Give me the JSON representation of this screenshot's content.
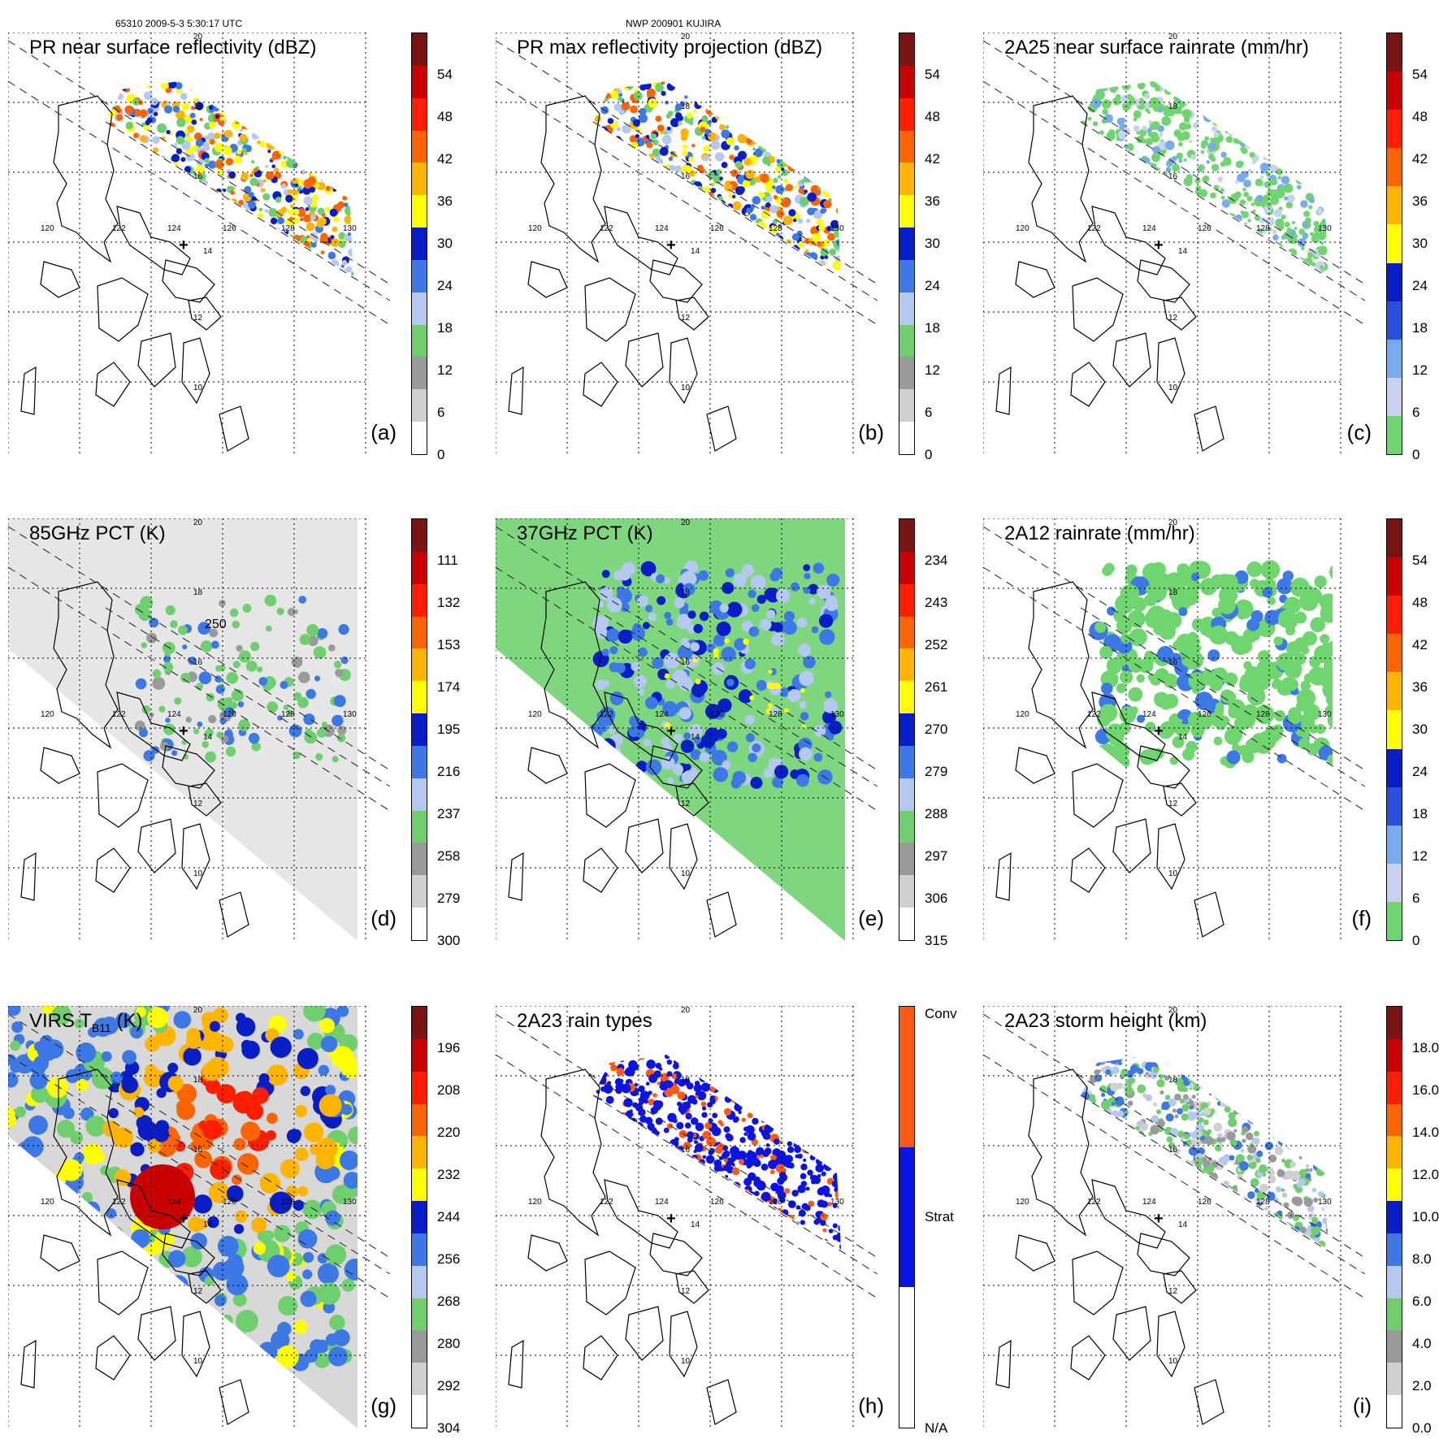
{
  "header": {
    "left": "65310 2009-5-3 5:30:17 UTC",
    "center": "NWP 200901 KUJIRA"
  },
  "map_labels": {
    "lat_top": "20",
    "lat_18": "18",
    "lat_16": "16",
    "lat_14": "14",
    "lat_12": "12",
    "lat_10": "10",
    "lon_120": "120",
    "lon_122": "122",
    "lon_124": "124",
    "lon_126": "126",
    "lon_128": "128",
    "lon_130": "130"
  },
  "panels": [
    {
      "id": "a",
      "label": "(a)",
      "title": "PR near surface reflectivity (dBZ)",
      "kind": "swath",
      "fill": "pr",
      "colorbar": {
        "colors": [
          "#ffffff",
          "#d0d0d0",
          "#9a9a9a",
          "#6fcf6f",
          "#b4c8f0",
          "#3c78e6",
          "#0a1ec8",
          "#ffff00",
          "#ffb400",
          "#ff6400",
          "#ff1e00",
          "#c80000",
          "#781414"
        ],
        "ticks": [
          "54",
          "48",
          "42",
          "36",
          "30",
          "24",
          "18",
          "12",
          "6",
          "0"
        ]
      }
    },
    {
      "id": "b",
      "label": "(b)",
      "title": "PR max reflectivity projection (dBZ)",
      "kind": "swath",
      "fill": "prmax",
      "colorbar": {
        "colors": [
          "#ffffff",
          "#d0d0d0",
          "#9a9a9a",
          "#6fcf6f",
          "#b4c8f0",
          "#3c78e6",
          "#0a1ec8",
          "#ffff00",
          "#ffb400",
          "#ff6400",
          "#ff1e00",
          "#c80000",
          "#781414"
        ],
        "ticks": [
          "54",
          "48",
          "42",
          "36",
          "30",
          "24",
          "18",
          "12",
          "6",
          "0"
        ]
      }
    },
    {
      "id": "c",
      "label": "(c)",
      "title": "2A25 near surface rainrate (mm/hr)",
      "kind": "swath",
      "fill": "rain",
      "colorbar": {
        "colors": [
          "#6fd66f",
          "#c8d2f0",
          "#78aaf0",
          "#2850dc",
          "#0a1ec8",
          "#ffff00",
          "#ffb400",
          "#ff6400",
          "#ff1e00",
          "#c80000",
          "#781414"
        ],
        "ticks": [
          "54",
          "48",
          "42",
          "36",
          "30",
          "24",
          "18",
          "12",
          "6",
          "0"
        ]
      }
    },
    {
      "id": "d",
      "label": "(d)",
      "title": "85GHz PCT (K)",
      "kind": "wide",
      "fill": "pct85",
      "contour_label": "250",
      "colorbar": {
        "colors": [
          "#ffffff",
          "#d0d0d0",
          "#9a9a9a",
          "#6fcf6f",
          "#b4c8f0",
          "#3c78e6",
          "#0a1ec8",
          "#ffff00",
          "#ffb400",
          "#ff6400",
          "#ff1e00",
          "#c80000",
          "#781414"
        ],
        "ticks": [
          "111",
          "132",
          "153",
          "174",
          "195",
          "216",
          "237",
          "258",
          "279",
          "300"
        ]
      }
    },
    {
      "id": "e",
      "label": "(e)",
      "title": "37GHz PCT (K)",
      "kind": "wide",
      "fill": "pct37",
      "colorbar": {
        "colors": [
          "#ffffff",
          "#d0d0d0",
          "#9a9a9a",
          "#6fcf6f",
          "#b4c8f0",
          "#3c78e6",
          "#0a1ec8",
          "#ffff00",
          "#ffb400",
          "#ff6400",
          "#ff1e00",
          "#c80000",
          "#781414"
        ],
        "ticks": [
          "234",
          "243",
          "252",
          "261",
          "270",
          "279",
          "288",
          "297",
          "306",
          "315"
        ]
      }
    },
    {
      "id": "f",
      "label": "(f)",
      "title": "2A12 rainrate (mm/hr)",
      "kind": "wide",
      "fill": "rain12",
      "colorbar": {
        "colors": [
          "#6fd66f",
          "#c8d2f0",
          "#78aaf0",
          "#2850dc",
          "#0a1ec8",
          "#ffff00",
          "#ffb400",
          "#ff6400",
          "#ff1e00",
          "#c80000",
          "#781414"
        ],
        "ticks": [
          "54",
          "48",
          "42",
          "36",
          "30",
          "24",
          "18",
          "12",
          "6",
          "0"
        ]
      }
    },
    {
      "id": "g",
      "label": "(g)",
      "title": "VIRS T",
      "title_sub": "B11",
      "title_tail": " (K)",
      "kind": "wide",
      "fill": "virs",
      "colorbar": {
        "colors": [
          "#ffffff",
          "#d0d0d0",
          "#9a9a9a",
          "#6fcf6f",
          "#b4c8f0",
          "#3c78e6",
          "#0a1ec8",
          "#ffff00",
          "#ffb400",
          "#ff6400",
          "#ff1e00",
          "#c80000",
          "#781414"
        ],
        "ticks": [
          "196",
          "208",
          "220",
          "232",
          "244",
          "256",
          "268",
          "280",
          "292",
          "304"
        ]
      }
    },
    {
      "id": "h",
      "label": "(h)",
      "title": "2A23 rain types",
      "kind": "swath",
      "fill": "types",
      "colorbar": {
        "colors": [
          "#ffffff",
          "#0a14e6",
          "#ff5a14"
        ],
        "ticks": [
          "Conv",
          "Strat",
          "N/A"
        ]
      }
    },
    {
      "id": "i",
      "label": "(i)",
      "title": "2A23 storm height (km)",
      "kind": "swath",
      "fill": "height",
      "colorbar": {
        "colors": [
          "#ffffff",
          "#d0d0d0",
          "#9a9a9a",
          "#6fcf6f",
          "#b4c8f0",
          "#3c78e6",
          "#0a1ec8",
          "#ffff00",
          "#ffb400",
          "#ff6400",
          "#ff1e00",
          "#c80000",
          "#781414"
        ],
        "ticks": [
          "18.0",
          "16.0",
          "14.0",
          "12.0",
          "10.0",
          "8.0",
          "6.0",
          "4.0",
          "2.0",
          "0.0"
        ]
      }
    }
  ]
}
